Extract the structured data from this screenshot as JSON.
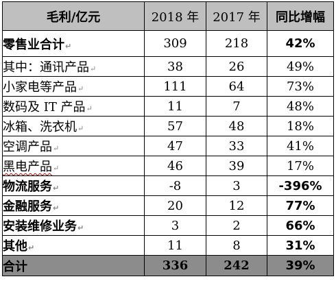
{
  "table": {
    "header": {
      "label": "毛利/亿元",
      "col_2018": "2018 年",
      "col_2017": "2017 年",
      "col_yoy": "同比增幅"
    },
    "rows": [
      {
        "label": "零售业合计",
        "v2018": "309",
        "v2017": "218",
        "yoy": "42%"
      },
      {
        "label": "其中：通讯产品",
        "v2018": "38",
        "v2017": "26",
        "yoy": "49%"
      },
      {
        "label": "小家电等产品",
        "v2018": "111",
        "v2017": "64",
        "yoy": "73%"
      },
      {
        "label": "数码及 IT 产品",
        "v2018": "11",
        "v2017": "7",
        "yoy": "48%"
      },
      {
        "label": "冰箱、洗衣机",
        "v2018": "57",
        "v2017": "48",
        "yoy": "18%"
      },
      {
        "label": "空调产品",
        "v2018": "47",
        "v2017": "33",
        "yoy": "41%"
      },
      {
        "label": "黑电产品",
        "v2018": "46",
        "v2017": "39",
        "yoy": "17%"
      },
      {
        "label": "物流服务",
        "v2018": "-8",
        "v2017": "3",
        "yoy": "-396%"
      },
      {
        "label": "金融服务",
        "v2018": "20",
        "v2017": "12",
        "yoy": "77%"
      },
      {
        "label": "安装维修业务",
        "v2018": "3",
        "v2017": "2",
        "yoy": "66%"
      },
      {
        "label": "其他",
        "v2018": "11",
        "v2017": "8",
        "yoy": "31%"
      }
    ],
    "total": {
      "label": "合计",
      "v2018": "336",
      "v2017": "242",
      "yoy": "39%"
    },
    "colors": {
      "header_bg": "#bfbfbf",
      "total_bg": "#8c8c8c",
      "border": "#000000"
    }
  }
}
